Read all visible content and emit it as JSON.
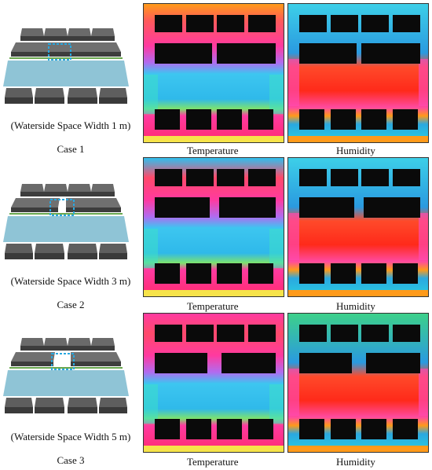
{
  "cases": [
    {
      "id": "case-1",
      "label": "Case 1",
      "width_label": "(Waterside Space Width 1 m)",
      "gap_width_m": 1
    },
    {
      "id": "case-2",
      "label": "Case 2",
      "width_label": "(Waterside Space Width 3 m)",
      "gap_width_m": 3
    },
    {
      "id": "case-3",
      "label": "Case 3",
      "width_label": "(Waterside Space Width 5 m)",
      "gap_width_m": 5
    }
  ],
  "captions": {
    "temperature": "Temperature",
    "humidity": "Humidity"
  },
  "colors": {
    "building": "#0a0a0a",
    "model_roof": "#5a5a5a",
    "model_front": "#3c3c3c",
    "water": "#8fc4d6",
    "highlight": "#29a8e0",
    "green_strip": "#6aa84f"
  }
}
